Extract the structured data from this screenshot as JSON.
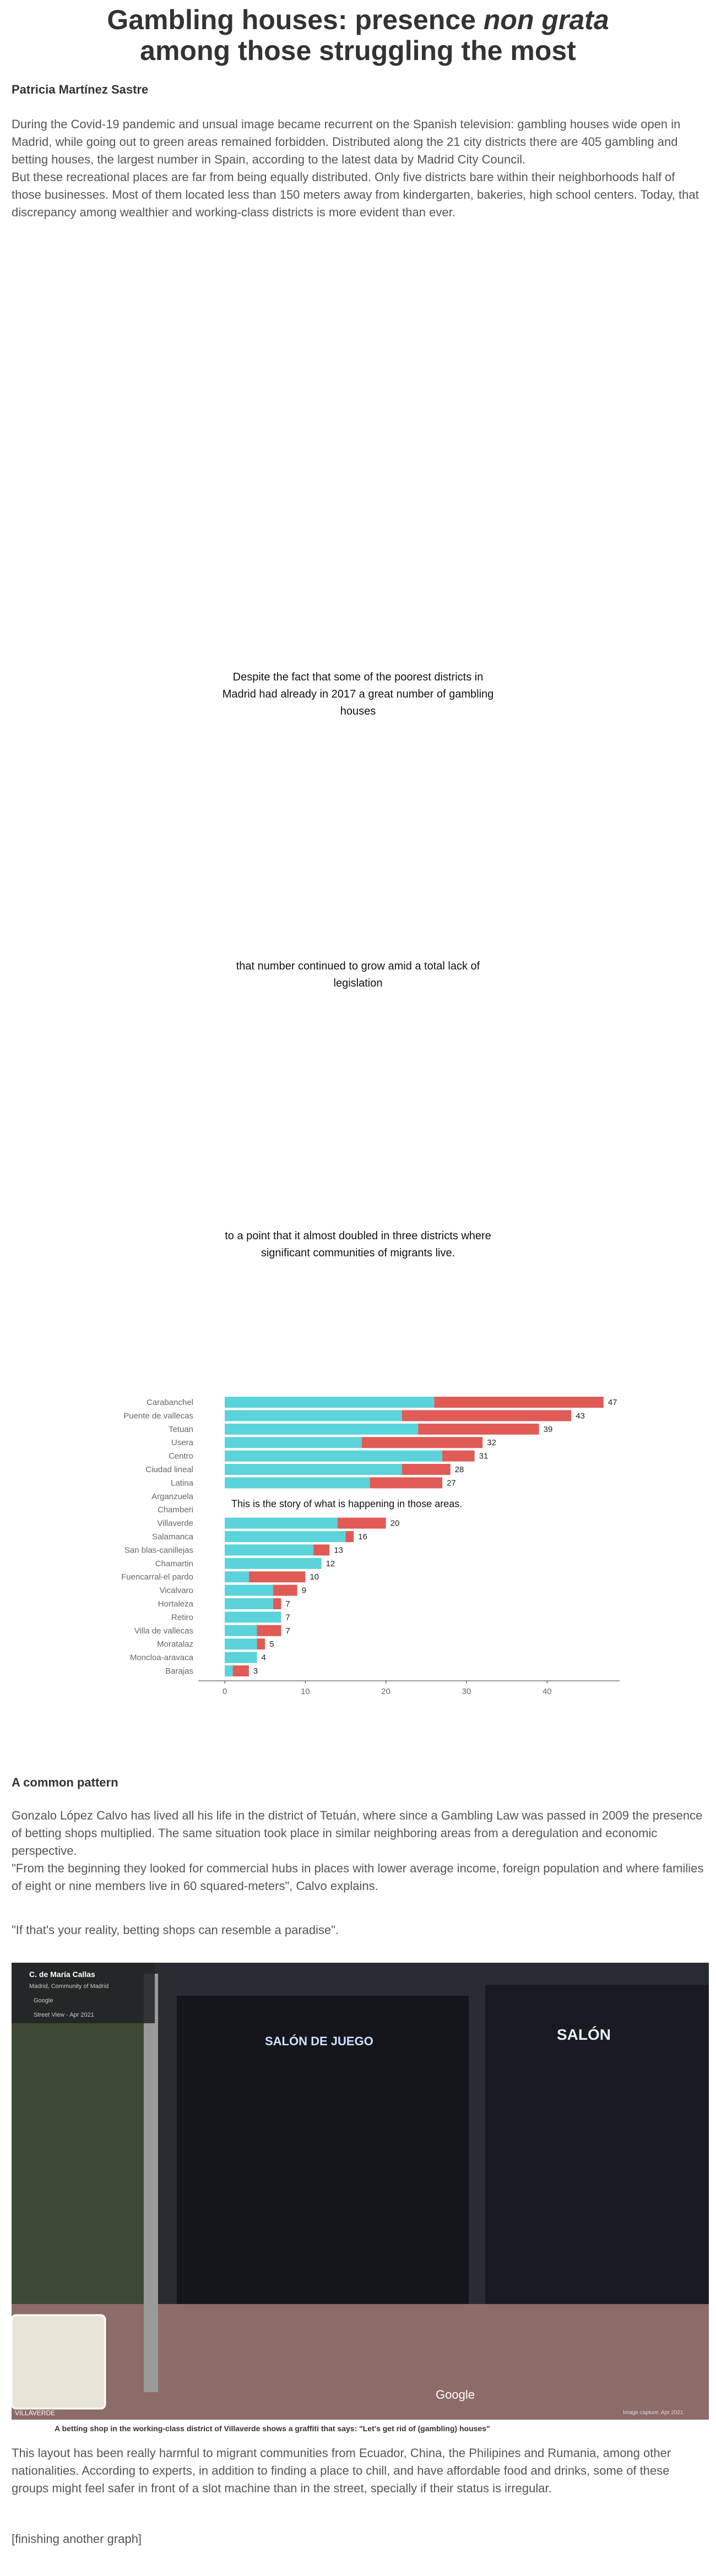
{
  "header": {
    "title_before": "Gambling houses: presence ",
    "title_em": "non grata",
    "title_after": "among those struggling the most",
    "author": "Patricia Martínez Sastre"
  },
  "intro": [
    "During the Covid-19 pandemic and unsual image became recurrent on the Spanish television: gambling houses wide open in Madrid, while going out to green areas remained forbidden. Distributed along the 21 city districts there are 405 gambling and betting houses, the largest number in Spain, according to the latest data by Madrid City Council.",
    "But these recreational places are far from being equally distributed. Only five districts bare within their neighborhoods half of those businesses. Most of them located less than 150 meters away from kindergarten, bakeries, high school centers. Today, that discrepancy among wealthier and working-class districts is more evident than ever."
  ],
  "steps": [
    "Despite the fact that some of the poorest districts in Madrid had already in 2017 a great number of gambling houses",
    "that number continued to grow amid a total lack of legislation",
    "to a point that it almost doubled in three districts where significant communities of migrants live."
  ],
  "chart_data": {
    "type": "stacked-barh",
    "annotation": "This is the story of what is happening in those areas.",
    "categories": [
      "Carabanchel",
      "Puente de vallecas",
      "Tetuan",
      "Usera",
      "Centro",
      "Ciudad lineal",
      "Latina",
      "Arganzuela",
      "Chamberi",
      "Villaverde",
      "Salamanca",
      "San blas-canillejas",
      "Chamartin",
      "Fuencarral-el pardo",
      "Vicalvaro",
      "Hortaleza",
      "Retiro",
      "Villa de vallecas",
      "Moratalaz",
      "Moncloa-aravaca",
      "Barajas"
    ],
    "series": [
      {
        "color": "#5bd3da",
        "values": [
          26,
          22,
          24,
          17,
          27,
          22,
          18,
          null,
          null,
          14,
          15,
          11,
          12,
          3,
          6,
          6,
          7,
          4,
          4,
          4,
          1
        ]
      },
      {
        "color": "#e05b56",
        "values": [
          21,
          21,
          15,
          15,
          4,
          6,
          9,
          null,
          null,
          6,
          1,
          2,
          0,
          7,
          3,
          1,
          0,
          3,
          1,
          0,
          2
        ]
      }
    ],
    "totals": [
      47,
      43,
      39,
      32,
      31,
      28,
      27,
      null,
      null,
      20,
      16,
      13,
      12,
      10,
      9,
      7,
      7,
      7,
      5,
      4,
      3
    ],
    "xlim": [
      0,
      49
    ],
    "xticks": [
      0,
      10,
      20,
      30,
      40
    ]
  },
  "section": {
    "heading": "A common pattern",
    "paragraphs": [
      "Gonzalo López Calvo has lived all his life in the district of Tetuán, where since a Gambling Law was passed in 2009 the presence of betting shops multiplied. The same situation took place in similar neighboring areas from a deregulation and economic perspective.",
      "\"From the beginning they looked for commercial hubs in places with lower average income, foreign population and where families of eight or nine members live in 60 squared-meters\", Calvo explains."
    ],
    "quote": "\"If that's your reality, betting shops can resemble a paradise\"."
  },
  "image": {
    "place": "C. de María Callas",
    "region": "Madrid, Community of Madrid",
    "brand": "Google",
    "date": "Street View - Apr 2021",
    "sign1": "SALÓN DE JUEGO",
    "sign2": "SALÓN",
    "logo": "Google",
    "capture": "Image capture: Apr 2021",
    "map": "VILLAVERDE",
    "caption": "A betting shop in the working-class district of Villaverde shows a graffiti that says: \"Let's get rid of (gambling) houses\""
  },
  "closing": {
    "paragraph": "This layout has been really harmful to migrant communities from Ecuador, China, the Philipines and Rumania, among other nationalities. According to experts, in addition to finding a place to chill, and have affordable food and drinks, some of these groups might feel safer in front of a slot machine than in the street, specially if their status is irregular.",
    "note": "[finishing another graph]"
  }
}
